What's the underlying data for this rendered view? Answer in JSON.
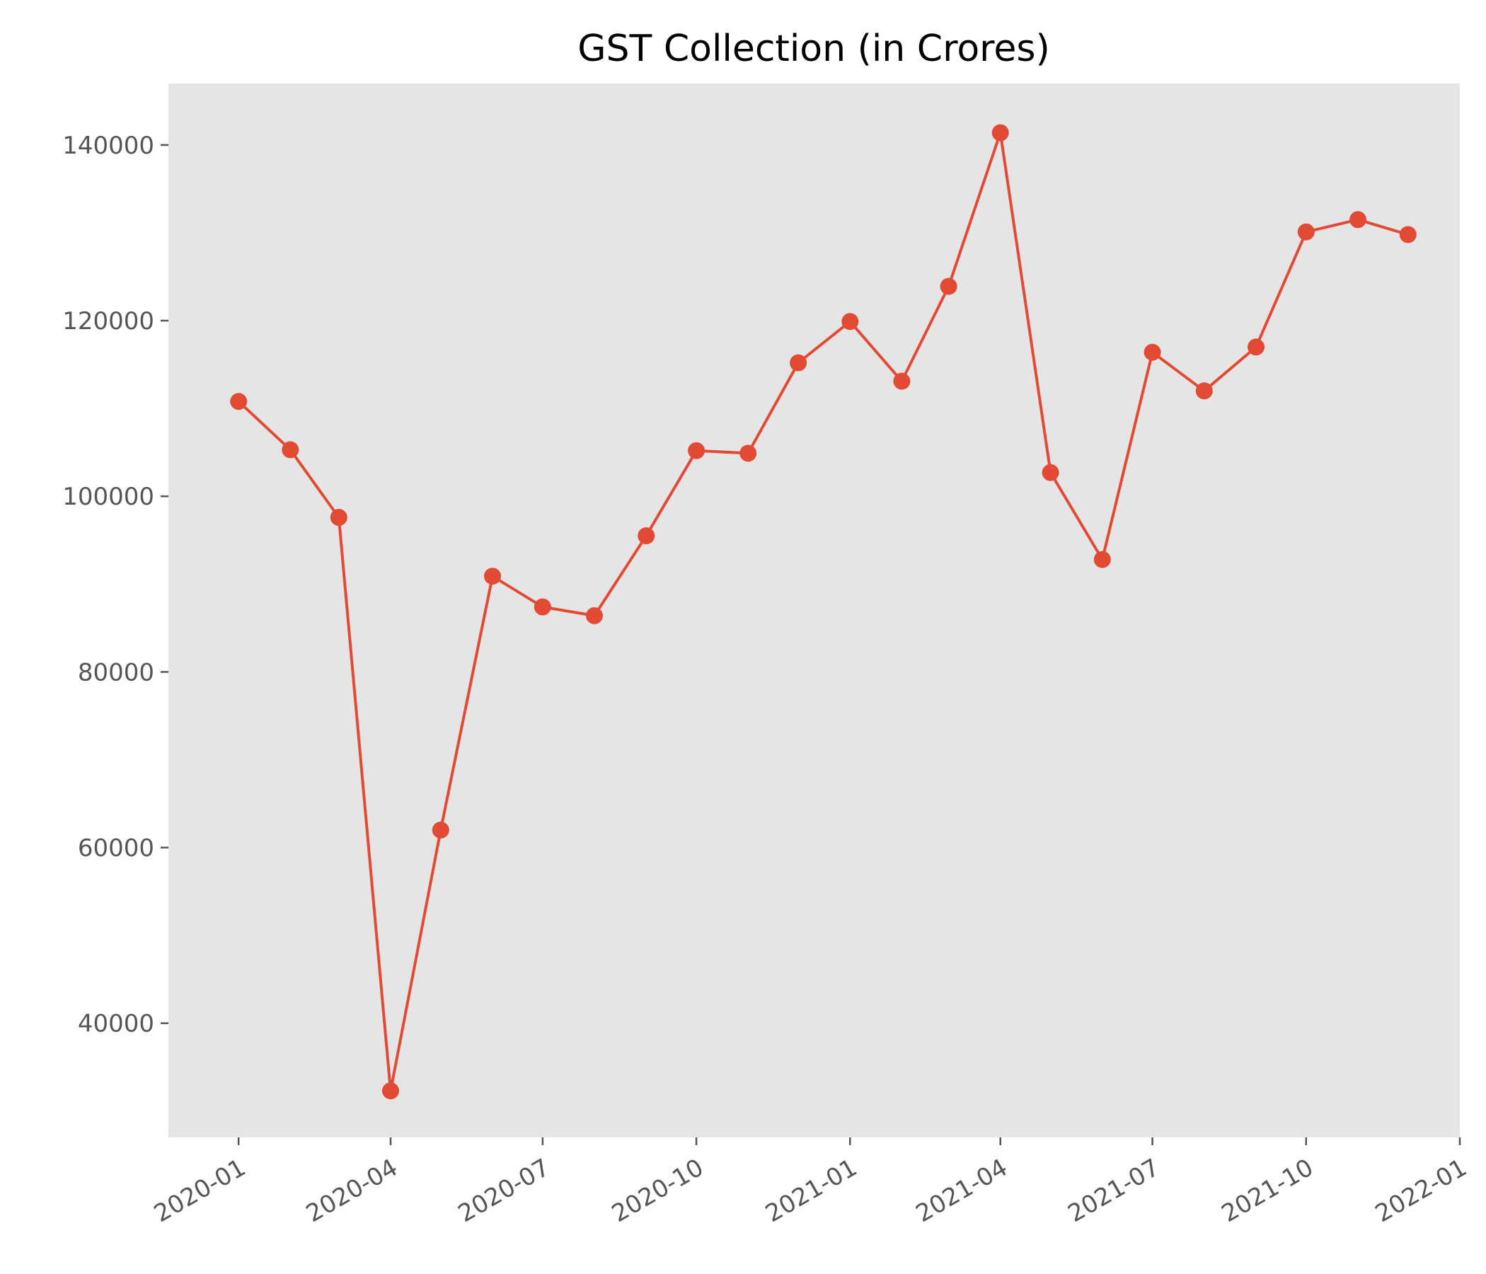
{
  "chart_data": {
    "type": "line",
    "title": "GST Collection (in Crores)",
    "xlabel": "",
    "ylabel": "",
    "x_axis_type": "date",
    "x_ticks": [
      "2020-01",
      "2020-04",
      "2020-07",
      "2020-10",
      "2021-01",
      "2021-04",
      "2021-07",
      "2021-10",
      "2022-01"
    ],
    "y_ticks": [
      40000,
      60000,
      80000,
      100000,
      120000,
      140000
    ],
    "xlim": [
      "2019-11-20",
      "2022-01-01"
    ],
    "ylim": [
      27000,
      147000
    ],
    "grid": false,
    "legend": "none",
    "background_color": "#e5e5e5",
    "series": [
      {
        "color": "#e24a33",
        "marker": "circle",
        "x": [
          "2020-01-01",
          "2020-02-01",
          "2020-03-01",
          "2020-04-01",
          "2020-05-01",
          "2020-06-01",
          "2020-07-01",
          "2020-08-01",
          "2020-09-01",
          "2020-10-01",
          "2020-11-01",
          "2020-12-01",
          "2021-01-01",
          "2021-02-01",
          "2021-03-01",
          "2021-04-01",
          "2021-05-01",
          "2021-06-01",
          "2021-07-01",
          "2021-08-01",
          "2021-09-01",
          "2021-10-01",
          "2021-11-01",
          "2021-12-01"
        ],
        "values": [
          110800,
          105300,
          97600,
          32300,
          62000,
          90900,
          87400,
          86400,
          95500,
          105200,
          104900,
          115200,
          119900,
          113100,
          123900,
          141400,
          102700,
          92800,
          116400,
          112000,
          117000,
          130100,
          131500,
          129800
        ]
      }
    ]
  }
}
